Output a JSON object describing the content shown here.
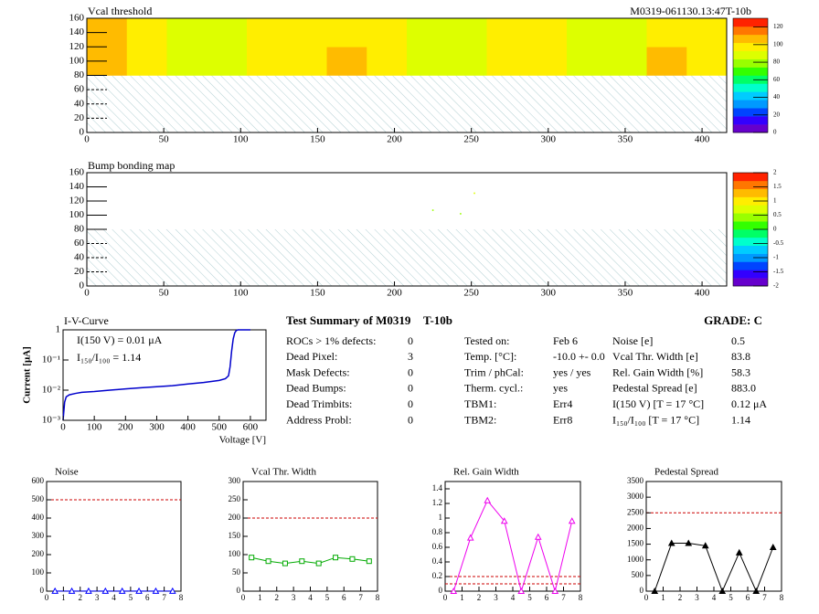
{
  "chart_data": [
    {
      "type": "heatmap",
      "title": "Vcal threshold",
      "subtitle": "M0319-061130.13:47T-10b",
      "xlim": [
        0,
        416
      ],
      "ylim": [
        0,
        160
      ],
      "xticks": [
        0,
        50,
        100,
        150,
        200,
        250,
        300,
        350,
        400
      ],
      "yticks": [
        0,
        20,
        40,
        60,
        80,
        100,
        120,
        140,
        160
      ],
      "x_edges": [
        0,
        26,
        52,
        78,
        104,
        130,
        156,
        182,
        208,
        234,
        260,
        286,
        312,
        338,
        364,
        390,
        416
      ],
      "y_edges": [
        80,
        120,
        160
      ],
      "z": [
        [
          108,
          102,
          88,
          92,
          98,
          93,
          103,
          96,
          86,
          88,
          97,
          99,
          89,
          85,
          104,
          101
        ],
        [
          105,
          100,
          90,
          89,
          96,
          94,
          100,
          98,
          84,
          87,
          95,
          97,
          86,
          84,
          101,
          99
        ]
      ],
      "zlim": [
        0,
        130
      ],
      "zticks": [
        0,
        20,
        40,
        60,
        80,
        100,
        120
      ],
      "masked_region": [
        0,
        80
      ],
      "palette": [
        "#6600cc",
        "#3300ff",
        "#0044ff",
        "#0099ff",
        "#00ccff",
        "#00ffcc",
        "#00ff66",
        "#33ff00",
        "#99ff00",
        "#ddff00",
        "#ffee00",
        "#ffbb00",
        "#ff7700",
        "#ff2200"
      ]
    },
    {
      "type": "hitmap",
      "title": "Bump bonding map",
      "xlim": [
        0,
        416
      ],
      "ylim": [
        0,
        160
      ],
      "xticks": [
        0,
        50,
        100,
        150,
        200,
        250,
        300,
        350,
        400
      ],
      "yticks": [
        0,
        20,
        40,
        60,
        80,
        100,
        120,
        140,
        160
      ],
      "x": [
        252,
        225,
        243
      ],
      "y": [
        131,
        107,
        102
      ],
      "z": [
        0.8,
        0.5,
        0.5
      ],
      "zlim": [
        -2,
        2
      ],
      "zticks": [
        -2,
        -1.5,
        -1,
        -0.5,
        0,
        0.5,
        1,
        1.5,
        2
      ],
      "masked_region": [
        0,
        80
      ],
      "palette": [
        "#6600cc",
        "#3300ff",
        "#0044ff",
        "#0099ff",
        "#00ccff",
        "#00ffcc",
        "#00ff66",
        "#33ff00",
        "#99ff00",
        "#ddff00",
        "#ffee00",
        "#ffbb00",
        "#ff7700",
        "#ff2200"
      ]
    },
    {
      "type": "line",
      "title": "I-V-Curve",
      "xlabel": "Voltage [V]",
      "ylabel": "Current [μA]",
      "annotations": [
        "I(150 V) = 0.01 μA",
        "I₁₅₀/I₁₀₀ =  1.14"
      ],
      "log_y": true,
      "color": "#0000cc",
      "xlim": [
        0,
        650
      ],
      "ylim": [
        0.001,
        1
      ],
      "xticks": [
        0,
        100,
        200,
        300,
        400,
        500,
        600
      ],
      "yticks": [
        {
          "value": 0.001,
          "label": "10⁻³"
        },
        {
          "value": 0.01,
          "label": "10⁻²"
        },
        {
          "value": 0.1,
          "label": "10⁻¹"
        },
        1
      ],
      "x": [
        0,
        5,
        10,
        20,
        40,
        60,
        100,
        150,
        200,
        250,
        300,
        350,
        400,
        450,
        500,
        520,
        530,
        535,
        540,
        545,
        550,
        555,
        560,
        580,
        600
      ],
      "values": [
        0.001,
        0.004,
        0.006,
        0.007,
        0.0078,
        0.0085,
        0.009,
        0.01,
        0.011,
        0.012,
        0.013,
        0.014,
        0.016,
        0.018,
        0.021,
        0.024,
        0.03,
        0.06,
        0.2,
        0.5,
        0.8,
        0.95,
        1,
        1,
        1
      ]
    },
    {
      "type": "line",
      "title": "Noise",
      "color": "#0000ff",
      "marker": "triangle",
      "marker_fill": false,
      "ref_lines": [
        500
      ],
      "xlim": [
        0,
        8
      ],
      "ylim": [
        0,
        600
      ],
      "xticks": [
        0,
        1,
        2,
        3,
        4,
        5,
        6,
        7,
        8
      ],
      "yticks": [
        0,
        100,
        200,
        300,
        400,
        500,
        600
      ],
      "x": [
        0.5,
        1.5,
        2.5,
        3.5,
        4.5,
        5.5,
        6.5,
        7.5
      ],
      "values": [
        0.6,
        0.5,
        0.4,
        0.5,
        0.6,
        0.5,
        0.4,
        0.5
      ]
    },
    {
      "type": "line",
      "title": "Vcal Thr. Width",
      "color": "#00aa00",
      "marker": "square",
      "marker_fill": false,
      "ref_lines": [
        200
      ],
      "xlim": [
        0,
        8
      ],
      "ylim": [
        0,
        300
      ],
      "xticks": [
        0,
        1,
        2,
        3,
        4,
        5,
        6,
        7,
        8
      ],
      "yticks": [
        0,
        50,
        100,
        150,
        200,
        250,
        300
      ],
      "x": [
        0.5,
        1.5,
        2.5,
        3.5,
        4.5,
        5.5,
        6.5,
        7.5
      ],
      "values": [
        92,
        82,
        76,
        82,
        76,
        92,
        88,
        82
      ]
    },
    {
      "type": "line",
      "title": "Rel. Gain Width",
      "color": "#ee00ee",
      "marker": "triangle",
      "marker_fill": false,
      "ref_lines": [
        0.1,
        0.2
      ],
      "xlim": [
        0,
        8
      ],
      "ylim": [
        0,
        1.5
      ],
      "xticks": [
        0,
        1,
        2,
        3,
        4,
        5,
        6,
        7,
        8
      ],
      "yticks": [
        0,
        0.2,
        0.4,
        0.6,
        0.8,
        1,
        1.2,
        1.4
      ],
      "x": [
        0.5,
        1.5,
        2.5,
        3.5,
        4.5,
        5.5,
        6.5,
        7.5
      ],
      "values": [
        0,
        0.73,
        1.24,
        0.96,
        0,
        0.74,
        0,
        0.96
      ]
    },
    {
      "type": "line",
      "title": "Pedestal Spread",
      "color": "#000000",
      "marker": "triangle",
      "marker_fill": true,
      "ref_lines": [
        2500
      ],
      "xlim": [
        0,
        8
      ],
      "ylim": [
        0,
        3500
      ],
      "xticks": [
        0,
        1,
        2,
        3,
        4,
        5,
        6,
        7,
        8
      ],
      "yticks": [
        0,
        500,
        1000,
        1500,
        2000,
        2500,
        3000,
        3500
      ],
      "x": [
        0.5,
        1.5,
        2.5,
        3.5,
        4.5,
        5.5,
        6.5,
        7.5
      ],
      "values": [
        0,
        1530,
        1530,
        1450,
        0,
        1230,
        0,
        1400
      ]
    }
  ],
  "summary": {
    "title": "Test Summary of M0319",
    "module_tag": "T-10b",
    "grade": "GRADE:  C",
    "left": [
      [
        "ROCs > 1% defects:",
        0
      ],
      [
        "Dead Pixel:",
        3
      ],
      [
        "Mask Defects:",
        0
      ],
      [
        "Dead Bumps:",
        0
      ],
      [
        "Dead Trimbits:",
        0
      ],
      [
        "Address Probl:",
        0
      ]
    ],
    "middle": [
      [
        "Tested on:",
        "Feb 6"
      ],
      [
        "Temp. [°C]:",
        "-10.0 +- 0.0"
      ],
      [
        "Trim / phCal:",
        "yes / yes"
      ],
      [
        "Therm. cycl.:",
        "yes"
      ],
      [
        "TBM1:",
        "Err4"
      ],
      [
        "TBM2:",
        "Err8"
      ]
    ],
    "right": [
      [
        "Noise [e]",
        0.5
      ],
      [
        "Vcal Thr. Width [e]",
        83.8
      ],
      [
        "Rel. Gain Width [%]",
        58.3
      ],
      [
        "Pedestal Spread [e]",
        "883.0"
      ],
      [
        "I(150 V)  [T = 17 °C]",
        "0.12 μA"
      ],
      [
        "I₁₅₀/I₁₀₀  [T = 17 °C]",
        1.14
      ]
    ]
  }
}
